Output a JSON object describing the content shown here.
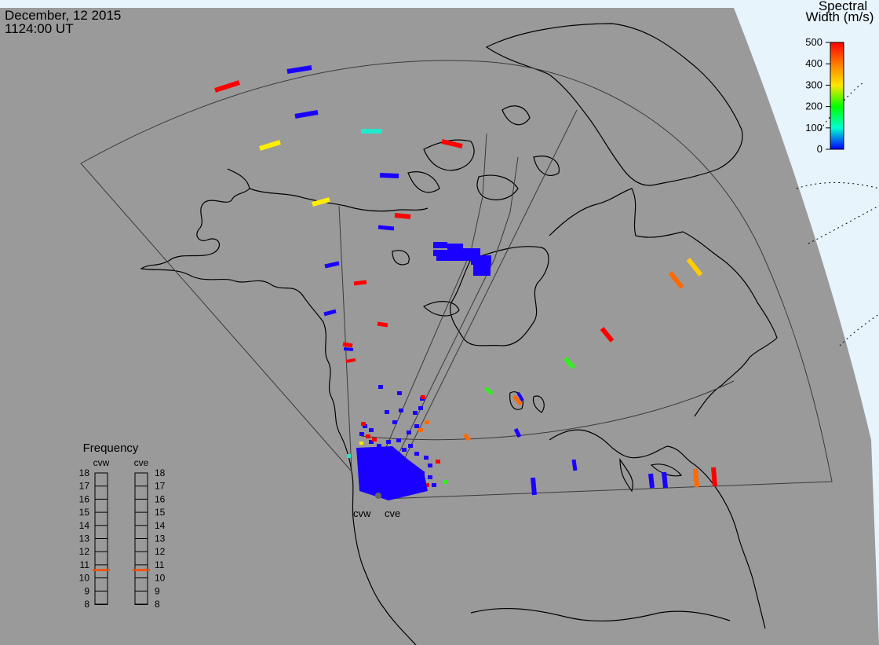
{
  "header": {
    "date": "December, 12 2015",
    "time": "1124:00 UT"
  },
  "colorbar": {
    "title_line1": "Spectral",
    "title_line2": "Width (m/s)",
    "ticks": [
      "500",
      "400",
      "300",
      "200",
      "100",
      "0"
    ],
    "gradient": [
      "#ff0000",
      "#ff7a00",
      "#ffe600",
      "#00ff00",
      "#00ffd0",
      "#0000ff"
    ]
  },
  "frequency": {
    "title": "Frequency",
    "radars": [
      "cvw",
      "cve"
    ],
    "ticks": [
      "18",
      "17",
      "16",
      "15",
      "14",
      "13",
      "12",
      "11",
      "10",
      "9",
      "8"
    ],
    "indicator_mhz": 10.6,
    "indicator_color": "#ff4a00"
  },
  "sites": {
    "west_label": "cvw",
    "east_label": "cve"
  },
  "palette": {
    "map_background": "#9a9a9a",
    "space_background": "#e8f4fc",
    "blue": "#1a00ff",
    "red": "#ff0000",
    "orange": "#ff6a00",
    "yellow": "#ffee00",
    "green": "#33ee22",
    "cyan": "#22e8cc",
    "amber": "#ffcc00"
  }
}
